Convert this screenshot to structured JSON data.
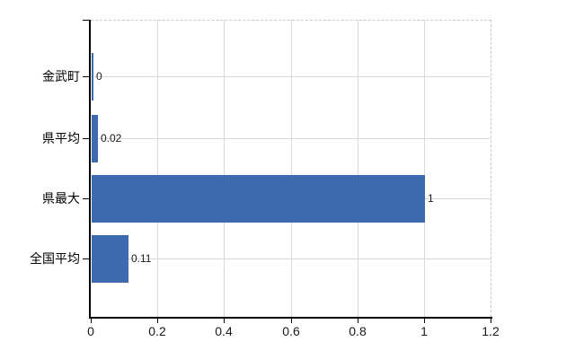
{
  "chart_data": {
    "type": "bar",
    "orientation": "horizontal",
    "title": "",
    "xlabel": "",
    "ylabel": "",
    "categories": [
      "金武町",
      "県平均",
      "県最大",
      "全国平均"
    ],
    "values": [
      0,
      0.02,
      1,
      0.11
    ],
    "value_labels": [
      "0",
      "0.02",
      "1",
      "0.11"
    ],
    "xlim": [
      0,
      1.2
    ],
    "x_ticks": [
      0,
      0.2,
      0.4,
      0.6,
      0.8,
      1,
      1.2
    ],
    "x_tick_labels": [
      "0",
      "0.2",
      "0.4",
      "0.6",
      "0.8",
      "1",
      "1.2"
    ],
    "grid": true,
    "legend": false,
    "colors": {
      "bar": "#3e6bb0",
      "gridline": "#d7dad7",
      "dashed_border": "#c9c9c9",
      "axis": "#000000",
      "text": "#1a1a1a",
      "background": "#ffffff"
    }
  }
}
